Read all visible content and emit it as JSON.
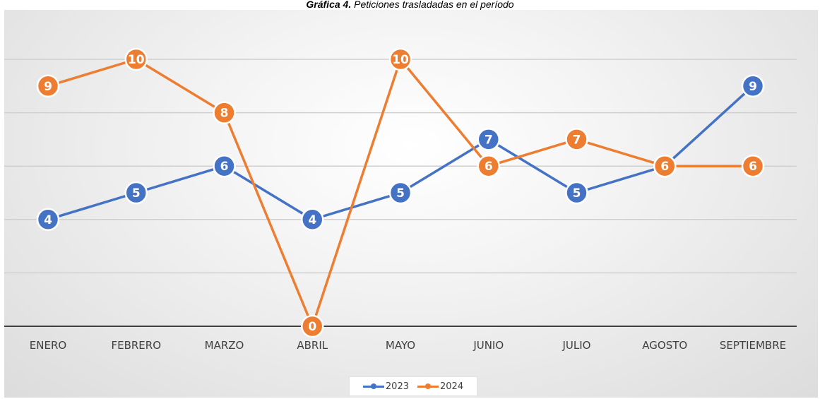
{
  "caption": {
    "bold": "Gráfica 4.",
    "rest": " Peticiones trasladadas en el período"
  },
  "chart_data": {
    "type": "line",
    "title": "",
    "xlabel": "",
    "ylabel": "",
    "categories": [
      "ENERO",
      "FEBRERO",
      "MARZO",
      "ABRIL",
      "MAYO",
      "JUNIO",
      "JULIO",
      "AGOSTO",
      "SEPTIEMBRE"
    ],
    "ylim": [
      0,
      10
    ],
    "y_gridlines": [
      2,
      4,
      6,
      8,
      10
    ],
    "grid": true,
    "legend_position": "bottom",
    "series": [
      {
        "name": "2023",
        "color": "#4472C4",
        "values": [
          4,
          5,
          6,
          4,
          5,
          7,
          5,
          6,
          9
        ]
      },
      {
        "name": "2024",
        "color": "#ED7D31",
        "values": [
          9,
          10,
          8,
          0,
          10,
          6,
          7,
          6,
          6
        ]
      }
    ]
  }
}
